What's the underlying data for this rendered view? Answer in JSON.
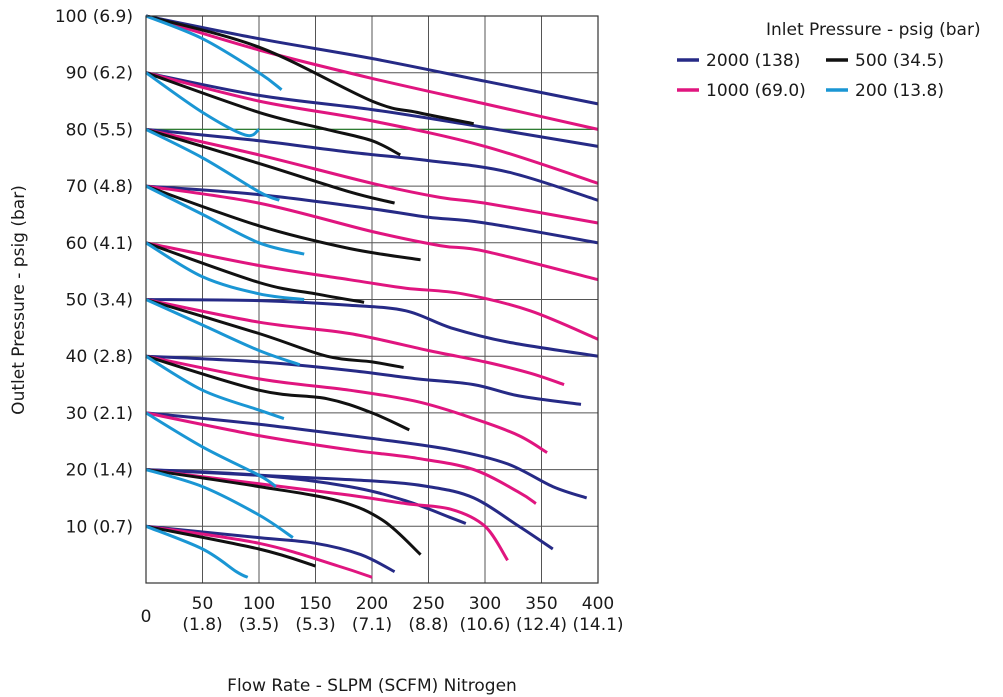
{
  "chart_data": {
    "type": "line",
    "xlabel": "Flow Rate - SLPM (SCFM) Nitrogen",
    "ylabel": "Outlet Pressure - psig (bar)",
    "xlim": [
      0,
      400
    ],
    "ylim": [
      0,
      100
    ],
    "grid": true,
    "legend_position": "top-right",
    "legend_title": "Inlet Pressure - psig (bar)",
    "x_ticks": [
      {
        "value": 0,
        "label": "0",
        "sub": ""
      },
      {
        "value": 50,
        "label": "50",
        "sub": "(1.8)"
      },
      {
        "value": 100,
        "label": "100",
        "sub": "(3.5)"
      },
      {
        "value": 150,
        "label": "150",
        "sub": "(5.3)"
      },
      {
        "value": 200,
        "label": "200",
        "sub": "(7.1)"
      },
      {
        "value": 250,
        "label": "250",
        "sub": "(8.8)"
      },
      {
        "value": 300,
        "label": "300",
        "sub": "(10.6)"
      },
      {
        "value": 350,
        "label": "350",
        "sub": "(12.4)"
      },
      {
        "value": 400,
        "label": "400",
        "sub": "(14.1)"
      }
    ],
    "y_ticks": [
      {
        "value": 10,
        "label": "10 (0.7)"
      },
      {
        "value": 20,
        "label": "20 (1.4)"
      },
      {
        "value": 30,
        "label": "30 (2.1)"
      },
      {
        "value": 40,
        "label": "40 (2.8)"
      },
      {
        "value": 50,
        "label": "50 (3.4)"
      },
      {
        "value": 60,
        "label": "60 (4.1)"
      },
      {
        "value": 70,
        "label": "70 (4.8)"
      },
      {
        "value": 80,
        "label": "80 (5.5)"
      },
      {
        "value": 90,
        "label": "90 (6.2)"
      },
      {
        "value": 100,
        "label": "100 (6.9)"
      }
    ],
    "reference_line": {
      "y": 80,
      "color": "#2e7d32"
    },
    "series": [
      {
        "name": "2000 (138)",
        "color": "#262a86",
        "curves": [
          [
            [
              0,
              100
            ],
            [
              100,
              96
            ],
            [
              200,
              92.5
            ],
            [
              300,
              88.5
            ],
            [
              400,
              84.5
            ]
          ],
          [
            [
              0,
              90
            ],
            [
              100,
              86
            ],
            [
              200,
              83.5
            ],
            [
              280,
              81
            ],
            [
              400,
              77
            ]
          ],
          [
            [
              0,
              80
            ],
            [
              100,
              78
            ],
            [
              180,
              76
            ],
            [
              250,
              74.5
            ],
            [
              320,
              72.5
            ],
            [
              400,
              67.5
            ]
          ],
          [
            [
              0,
              70
            ],
            [
              100,
              68.5
            ],
            [
              200,
              66
            ],
            [
              250,
              64.5
            ],
            [
              300,
              63.5
            ],
            [
              400,
              60
            ]
          ],
          [
            [
              0,
              50
            ],
            [
              100,
              49.8
            ],
            [
              180,
              49
            ],
            [
              230,
              48
            ],
            [
              270,
              45
            ],
            [
              320,
              42.5
            ],
            [
              400,
              40
            ]
          ],
          [
            [
              0,
              40
            ],
            [
              100,
              39
            ],
            [
              180,
              37.5
            ],
            [
              240,
              36
            ],
            [
              290,
              35
            ],
            [
              330,
              33
            ],
            [
              385,
              31.5
            ]
          ],
          [
            [
              0,
              30
            ],
            [
              100,
              28
            ],
            [
              200,
              25.5
            ],
            [
              270,
              23.5
            ],
            [
              320,
              21
            ],
            [
              360,
              17
            ],
            [
              390,
              15
            ]
          ],
          [
            [
              0,
              20
            ],
            [
              100,
              19
            ],
            [
              200,
              18
            ],
            [
              250,
              17
            ],
            [
              290,
              15
            ],
            [
              330,
              10
            ],
            [
              360,
              6
            ]
          ],
          [
            [
              0,
              20
            ],
            [
              100,
              19
            ],
            [
              180,
              17
            ],
            [
              230,
              14.5
            ],
            [
              270,
              11.5
            ],
            [
              283,
              10.5
            ]
          ],
          [
            [
              0,
              10
            ],
            [
              100,
              8
            ],
            [
              150,
              7
            ],
            [
              190,
              5
            ],
            [
              220,
              2
            ]
          ]
        ]
      },
      {
        "name": "1000 (69.0)",
        "color": "#e0157f",
        "curves": [
          [
            [
              0,
              100
            ],
            [
              100,
              94
            ],
            [
              200,
              89
            ],
            [
              300,
              84.5
            ],
            [
              400,
              80
            ]
          ],
          [
            [
              0,
              90
            ],
            [
              100,
              85
            ],
            [
              200,
              81.5
            ],
            [
              300,
              77
            ],
            [
              400,
              70.5
            ]
          ],
          [
            [
              0,
              80
            ],
            [
              100,
              75.5
            ],
            [
              200,
              70.5
            ],
            [
              260,
              68
            ],
            [
              300,
              67
            ],
            [
              400,
              63.5
            ]
          ],
          [
            [
              0,
              70
            ],
            [
              100,
              67
            ],
            [
              200,
              62
            ],
            [
              260,
              59.5
            ],
            [
              300,
              58.5
            ],
            [
              400,
              53.5
            ]
          ],
          [
            [
              0,
              60
            ],
            [
              100,
              56
            ],
            [
              180,
              53.5
            ],
            [
              230,
              52
            ],
            [
              280,
              51
            ],
            [
              340,
              48
            ],
            [
              400,
              43
            ]
          ],
          [
            [
              0,
              50
            ],
            [
              100,
              46
            ],
            [
              180,
              44
            ],
            [
              250,
              41
            ],
            [
              300,
              39
            ],
            [
              340,
              37
            ],
            [
              370,
              35
            ]
          ],
          [
            [
              0,
              40
            ],
            [
              100,
              36
            ],
            [
              180,
              34
            ],
            [
              240,
              32
            ],
            [
              290,
              29
            ],
            [
              330,
              26
            ],
            [
              355,
              23
            ]
          ],
          [
            [
              0,
              30
            ],
            [
              100,
              26
            ],
            [
              180,
              23.5
            ],
            [
              240,
              22
            ],
            [
              290,
              20
            ],
            [
              330,
              16
            ],
            [
              345,
              14
            ]
          ],
          [
            [
              0,
              20
            ],
            [
              100,
              17.5
            ],
            [
              180,
              15.5
            ],
            [
              230,
              14
            ],
            [
              270,
              13
            ],
            [
              300,
              10
            ],
            [
              320,
              4
            ]
          ],
          [
            [
              0,
              10
            ],
            [
              100,
              7
            ],
            [
              170,
              3
            ],
            [
              200,
              1
            ]
          ]
        ]
      },
      {
        "name": "500 (34.5)",
        "color": "#111111",
        "curves": [
          [
            [
              0,
              100
            ],
            [
              100,
              94.5
            ],
            [
              200,
              85
            ],
            [
              240,
              83
            ],
            [
              290,
              81
            ]
          ],
          [
            [
              0,
              90
            ],
            [
              100,
              83
            ],
            [
              160,
              80
            ],
            [
              200,
              78
            ],
            [
              225,
              75.5
            ]
          ],
          [
            [
              0,
              80
            ],
            [
              100,
              74
            ],
            [
              180,
              69
            ],
            [
              220,
              67
            ]
          ],
          [
            [
              0,
              70
            ],
            [
              100,
              63
            ],
            [
              180,
              59
            ],
            [
              243,
              57
            ]
          ],
          [
            [
              0,
              60
            ],
            [
              100,
              53
            ],
            [
              150,
              51
            ],
            [
              193,
              49.5
            ]
          ],
          [
            [
              0,
              50
            ],
            [
              100,
              44
            ],
            [
              160,
              40
            ],
            [
              200,
              39
            ],
            [
              228,
              38
            ]
          ],
          [
            [
              0,
              40
            ],
            [
              100,
              34
            ],
            [
              160,
              32.5
            ],
            [
              200,
              30
            ],
            [
              233,
              27
            ]
          ],
          [
            [
              0,
              20
            ],
            [
              100,
              17
            ],
            [
              170,
              14.5
            ],
            [
              210,
              11
            ],
            [
              243,
              5
            ]
          ],
          [
            [
              0,
              10
            ],
            [
              100,
              6
            ],
            [
              150,
              3
            ]
          ]
        ]
      },
      {
        "name": "200 (13.8)",
        "color": "#1a96d4",
        "curves": [
          [
            [
              0,
              100
            ],
            [
              50,
              96
            ],
            [
              100,
              90
            ],
            [
              120,
              87
            ]
          ],
          [
            [
              0,
              90
            ],
            [
              50,
              83
            ],
            [
              100,
              80
            ],
            [
              88,
              79
            ]
          ],
          [
            [
              0,
              80
            ],
            [
              50,
              75
            ],
            [
              100,
              69
            ],
            [
              118,
              67.5
            ]
          ],
          [
            [
              0,
              70
            ],
            [
              50,
              65
            ],
            [
              100,
              60
            ],
            [
              140,
              58
            ]
          ],
          [
            [
              0,
              60
            ],
            [
              50,
              54
            ],
            [
              100,
              51
            ],
            [
              140,
              50
            ]
          ],
          [
            [
              0,
              50
            ],
            [
              50,
              45.5
            ],
            [
              100,
              41
            ],
            [
              136,
              38.5
            ]
          ],
          [
            [
              0,
              40
            ],
            [
              50,
              34
            ],
            [
              100,
              30.5
            ],
            [
              122,
              29
            ]
          ],
          [
            [
              0,
              30
            ],
            [
              50,
              24
            ],
            [
              100,
              19
            ],
            [
              115,
              17
            ]
          ],
          [
            [
              0,
              20
            ],
            [
              50,
              17
            ],
            [
              100,
              12
            ],
            [
              130,
              8
            ]
          ],
          [
            [
              0,
              10
            ],
            [
              50,
              6
            ],
            [
              80,
              2
            ],
            [
              90,
              1
            ]
          ]
        ]
      }
    ]
  }
}
